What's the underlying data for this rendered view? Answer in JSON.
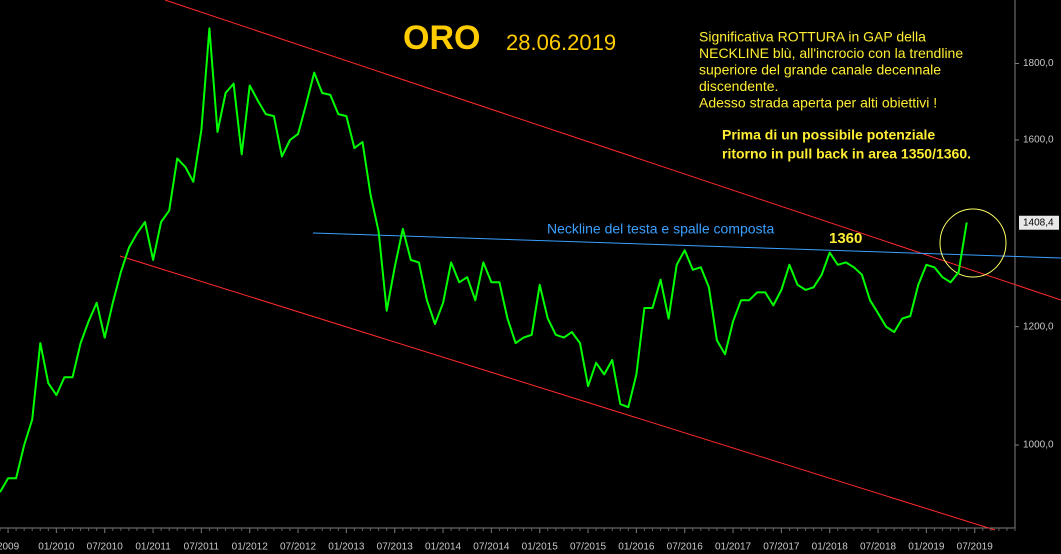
{
  "chart_data": {
    "type": "line",
    "title": "ORO",
    "subtitle": "28.06.2019",
    "notes": [
      "Significativa ROTTURA in GAP della",
      "NECKLINE blù, all'incrocio con la trendline",
      "superiore del grande canale decennale",
      "discendente.",
      "Adesso strada aperta per alti obiettivi !"
    ],
    "bold_notes": [
      "Prima di un possibile potenziale",
      "ritorno in pull back in area 1350/1360."
    ],
    "annotations": [
      "Neckline del testa e spalle composta",
      "1360"
    ],
    "log_scale": true,
    "xlim": [
      "06/2009",
      "12/2019"
    ],
    "ylim": [
      880,
      1985
    ],
    "xticks": [
      {
        "value": "07/2009",
        "label": "2009"
      },
      "01/2010",
      "07/2010",
      "01/2011",
      "07/2011",
      "01/2012",
      "07/2012",
      "01/2013",
      "07/2013",
      "01/2014",
      "07/2014",
      "01/2015",
      "07/2015",
      "01/2016",
      "07/2016",
      "01/2017",
      "07/2017",
      "01/2018",
      "07/2018",
      "01/2019",
      "07/2019"
    ],
    "yticks": [
      {
        "value": 1000,
        "label": "1000,0"
      },
      {
        "value": 1200,
        "label": "1200,0"
      },
      {
        "value": 1600,
        "label": "1600,0"
      },
      {
        "value": 1800,
        "label": "1800,0"
      }
    ],
    "last_value": {
      "value": 1408.4,
      "label": "1408,4"
    },
    "series": [
      {
        "name": "ORO",
        "color": "#00ff00",
        "x": [
          "06/2009",
          "07/2009",
          "08/2009",
          "09/2009",
          "10/2009",
          "11/2009",
          "12/2009",
          "01/2010",
          "02/2010",
          "03/2010",
          "04/2010",
          "05/2010",
          "06/2010",
          "07/2010",
          "08/2010",
          "09/2010",
          "10/2010",
          "11/2010",
          "12/2010",
          "01/2011",
          "02/2011",
          "03/2011",
          "04/2011",
          "05/2011",
          "06/2011",
          "07/2011",
          "08/2011",
          "09/2011",
          "10/2011",
          "11/2011",
          "12/2011",
          "01/2012",
          "02/2012",
          "03/2012",
          "04/2012",
          "05/2012",
          "06/2012",
          "07/2012",
          "08/2012",
          "09/2012",
          "10/2012",
          "11/2012",
          "12/2012",
          "01/2013",
          "02/2013",
          "03/2013",
          "04/2013",
          "05/2013",
          "06/2013",
          "07/2013",
          "08/2013",
          "09/2013",
          "10/2013",
          "11/2013",
          "12/2013",
          "01/2014",
          "02/2014",
          "03/2014",
          "04/2014",
          "05/2014",
          "06/2014",
          "07/2014",
          "08/2014",
          "09/2014",
          "10/2014",
          "11/2014",
          "12/2014",
          "01/2015",
          "02/2015",
          "03/2015",
          "04/2015",
          "05/2015",
          "06/2015",
          "07/2015",
          "08/2015",
          "09/2015",
          "10/2015",
          "11/2015",
          "12/2015",
          "01/2016",
          "02/2016",
          "03/2016",
          "04/2016",
          "05/2016",
          "06/2016",
          "07/2016",
          "08/2016",
          "09/2016",
          "10/2016",
          "11/2016",
          "12/2016",
          "01/2017",
          "02/2017",
          "03/2017",
          "04/2017",
          "05/2017",
          "06/2017",
          "07/2017",
          "08/2017",
          "09/2017",
          "10/2017",
          "11/2017",
          "12/2017",
          "01/2018",
          "02/2018",
          "03/2018",
          "04/2018",
          "05/2018",
          "06/2018",
          "07/2018",
          "08/2018",
          "09/2018",
          "10/2018",
          "11/2018",
          "12/2018",
          "01/2019",
          "02/2019",
          "03/2019",
          "04/2019",
          "05/2019",
          "06/2019"
        ],
        "values": [
          930,
          950,
          950,
          1000,
          1040,
          1170,
          1100,
          1080,
          1110,
          1110,
          1170,
          1210,
          1245,
          1180,
          1245,
          1305,
          1355,
          1385,
          1410,
          1330,
          1410,
          1435,
          1555,
          1535,
          1500,
          1625,
          1900,
          1620,
          1720,
          1745,
          1565,
          1740,
          1700,
          1665,
          1660,
          1560,
          1600,
          1615,
          1690,
          1775,
          1720,
          1715,
          1665,
          1660,
          1580,
          1595,
          1470,
          1390,
          1230,
          1315,
          1395,
          1330,
          1325,
          1250,
          1205,
          1245,
          1325,
          1285,
          1295,
          1250,
          1325,
          1285,
          1285,
          1215,
          1170,
          1180,
          1185,
          1280,
          1215,
          1185,
          1180,
          1190,
          1170,
          1095,
          1135,
          1115,
          1140,
          1065,
          1060,
          1115,
          1235,
          1235,
          1290,
          1215,
          1320,
          1350,
          1310,
          1315,
          1275,
          1175,
          1150,
          1210,
          1250,
          1250,
          1265,
          1265,
          1240,
          1270,
          1320,
          1280,
          1270,
          1275,
          1300,
          1345,
          1320,
          1325,
          1315,
          1300,
          1250,
          1225,
          1200,
          1190,
          1215,
          1220,
          1280,
          1320,
          1315,
          1295,
          1285,
          1305,
          1409
        ]
      }
    ]
  }
}
